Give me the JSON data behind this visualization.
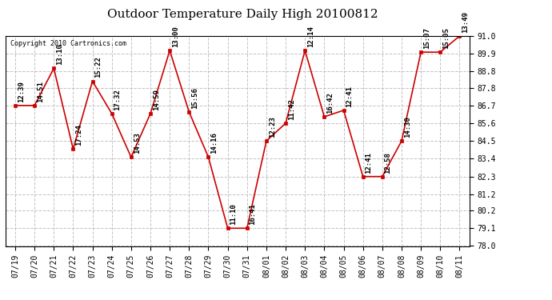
{
  "title": "Outdoor Temperature Daily High 20100812",
  "copyright": "Copyright 2010 Cartronics.com",
  "x_labels": [
    "07/19",
    "07/20",
    "07/21",
    "07/22",
    "07/23",
    "07/24",
    "07/25",
    "07/26",
    "07/27",
    "07/28",
    "07/29",
    "07/30",
    "07/31",
    "08/01",
    "08/02",
    "08/03",
    "08/04",
    "08/05",
    "08/06",
    "08/07",
    "08/08",
    "08/09",
    "08/10",
    "08/11"
  ],
  "y_values": [
    86.7,
    86.7,
    89.0,
    84.0,
    88.2,
    86.2,
    83.5,
    86.2,
    90.1,
    86.3,
    83.5,
    79.1,
    79.1,
    84.5,
    85.6,
    90.1,
    86.0,
    86.4,
    82.3,
    82.3,
    84.5,
    90.0,
    90.0,
    91.0
  ],
  "annotations": [
    "12:39",
    "14:51",
    "13:10",
    "17:24",
    "15:22",
    "17:32",
    "14:53",
    "14:59",
    "13:00",
    "15:56",
    "14:16",
    "11:10",
    "16:41",
    "12:23",
    "11:42",
    "12:14",
    "16:42",
    "12:41",
    "12:41",
    "12:58",
    "14:30",
    "15:07",
    "15:05",
    "13:49"
  ],
  "ylim": [
    78.0,
    91.0
  ],
  "yticks": [
    78.0,
    79.1,
    80.2,
    81.2,
    82.3,
    83.4,
    84.5,
    85.6,
    86.7,
    87.8,
    88.8,
    89.9,
    91.0
  ],
  "line_color": "#cc0000",
  "marker_color": "#cc0000",
  "bg_color": "#ffffff",
  "grid_color": "#bbbbbb",
  "title_fontsize": 11,
  "annot_fontsize": 6.5,
  "tick_fontsize": 7.0
}
